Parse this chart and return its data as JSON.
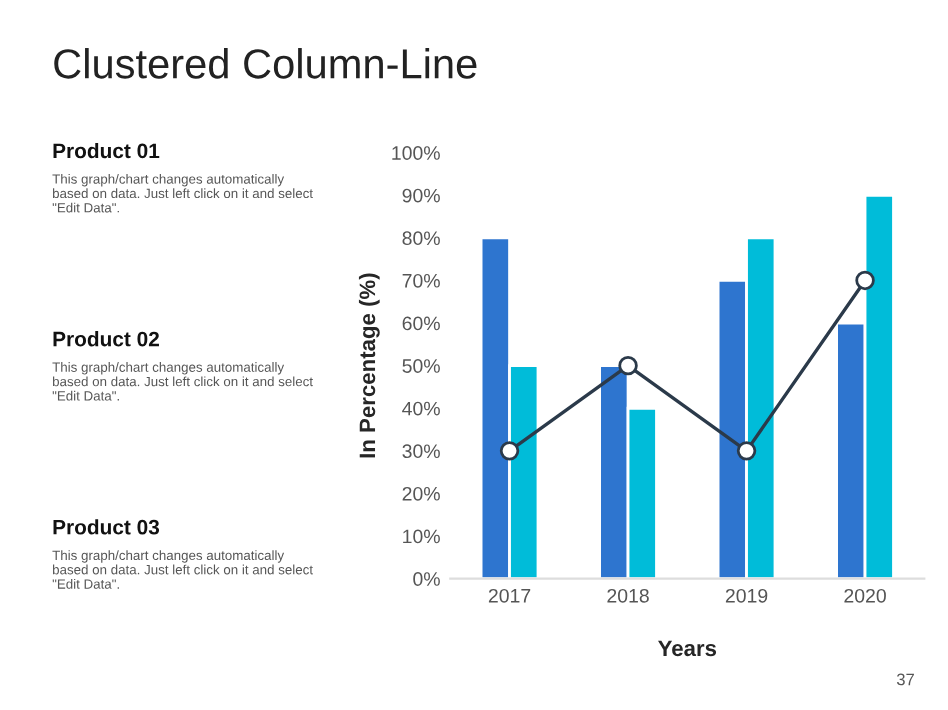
{
  "chart_data": {
    "type": "bar",
    "title": "Clustered Column-Line",
    "categories": [
      "2017",
      "2018",
      "2019",
      "2020"
    ],
    "series": [
      {
        "color": "#2e75cf",
        "values": [
          80,
          50,
          70,
          60
        ]
      },
      {
        "color": "#00bcd9",
        "values": [
          50,
          40,
          80,
          90
        ]
      },
      {
        "type": "line",
        "color": "#2b3a4a",
        "values": [
          30,
          50,
          30,
          70
        ],
        "marker": "circle"
      }
    ],
    "xlabel": "Years",
    "ylabel": "In Percentage (%)",
    "ylim": [
      0,
      100
    ],
    "yticks": [
      {
        "value": 0,
        "label": "0%"
      },
      {
        "value": 10,
        "label": "10%"
      },
      {
        "value": 20,
        "label": "20%"
      },
      {
        "value": 30,
        "label": "30%"
      },
      {
        "value": 40,
        "label": "40%"
      },
      {
        "value": 50,
        "label": "50%"
      },
      {
        "value": 60,
        "label": "60%"
      },
      {
        "value": 70,
        "label": "70%"
      },
      {
        "value": 80,
        "label": "80%"
      },
      {
        "value": 90,
        "label": "90%"
      },
      {
        "value": 100,
        "label": "100%"
      }
    ],
    "grid": false,
    "legend": false,
    "annotations": [
      "Product 01",
      "This graph/chart changes automatically based on data. Just left click on it and select \"Edit Data\".",
      "Product 02",
      "This graph/chart changes automatically based on data. Just left click on it and select \"Edit Data\".",
      "Product 03",
      "This graph/chart changes automatically based on data. Just left click on it and select \"Edit Data\".",
      "37"
    ]
  }
}
